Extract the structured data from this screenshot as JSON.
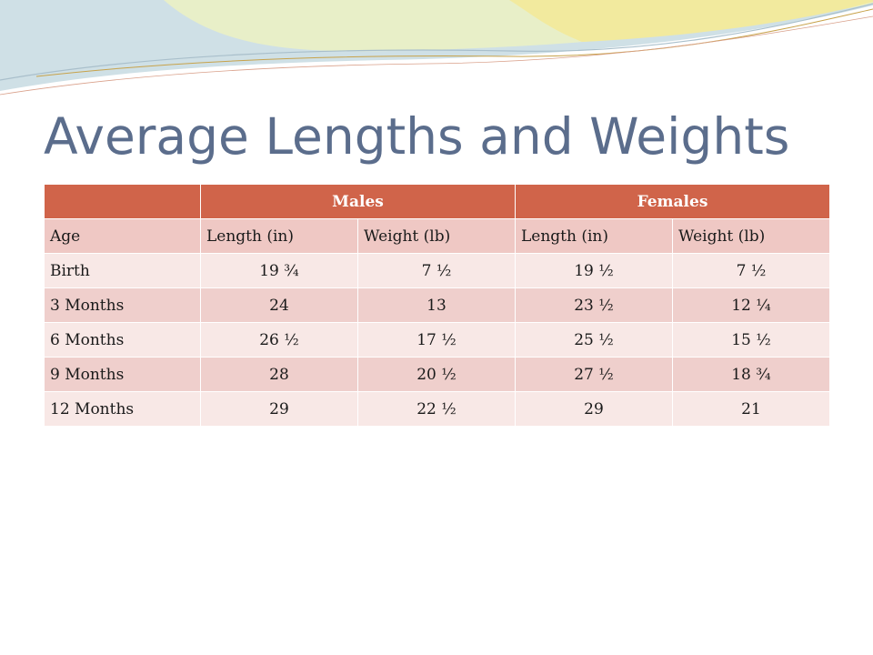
{
  "title": "Average Lengths and Weights",
  "theme": {
    "title_color": "#5b6d8c",
    "header_color": "#d0644a",
    "row_light": "#f8e8e6",
    "row_dark": "#efcfcc"
  },
  "table": {
    "group_headers": [
      "",
      "Males",
      "Females"
    ],
    "column_headers": [
      "Age",
      "Length (in)",
      "Weight (lb)",
      "Length (in)",
      "Weight (lb)"
    ],
    "rows": [
      [
        "Birth",
        "19 ¾",
        "7 ½",
        "19 ½",
        "7 ½"
      ],
      [
        "3 Months",
        "24",
        "13",
        "23 ½",
        "12 ¼"
      ],
      [
        "6 Months",
        "26 ½",
        "17 ½",
        "25 ½",
        "15 ½"
      ],
      [
        "9 Months",
        "28",
        "20 ½",
        "27 ½",
        "18 ¾"
      ],
      [
        "12 Months",
        "29",
        "22 ½",
        "29",
        "21"
      ]
    ]
  }
}
